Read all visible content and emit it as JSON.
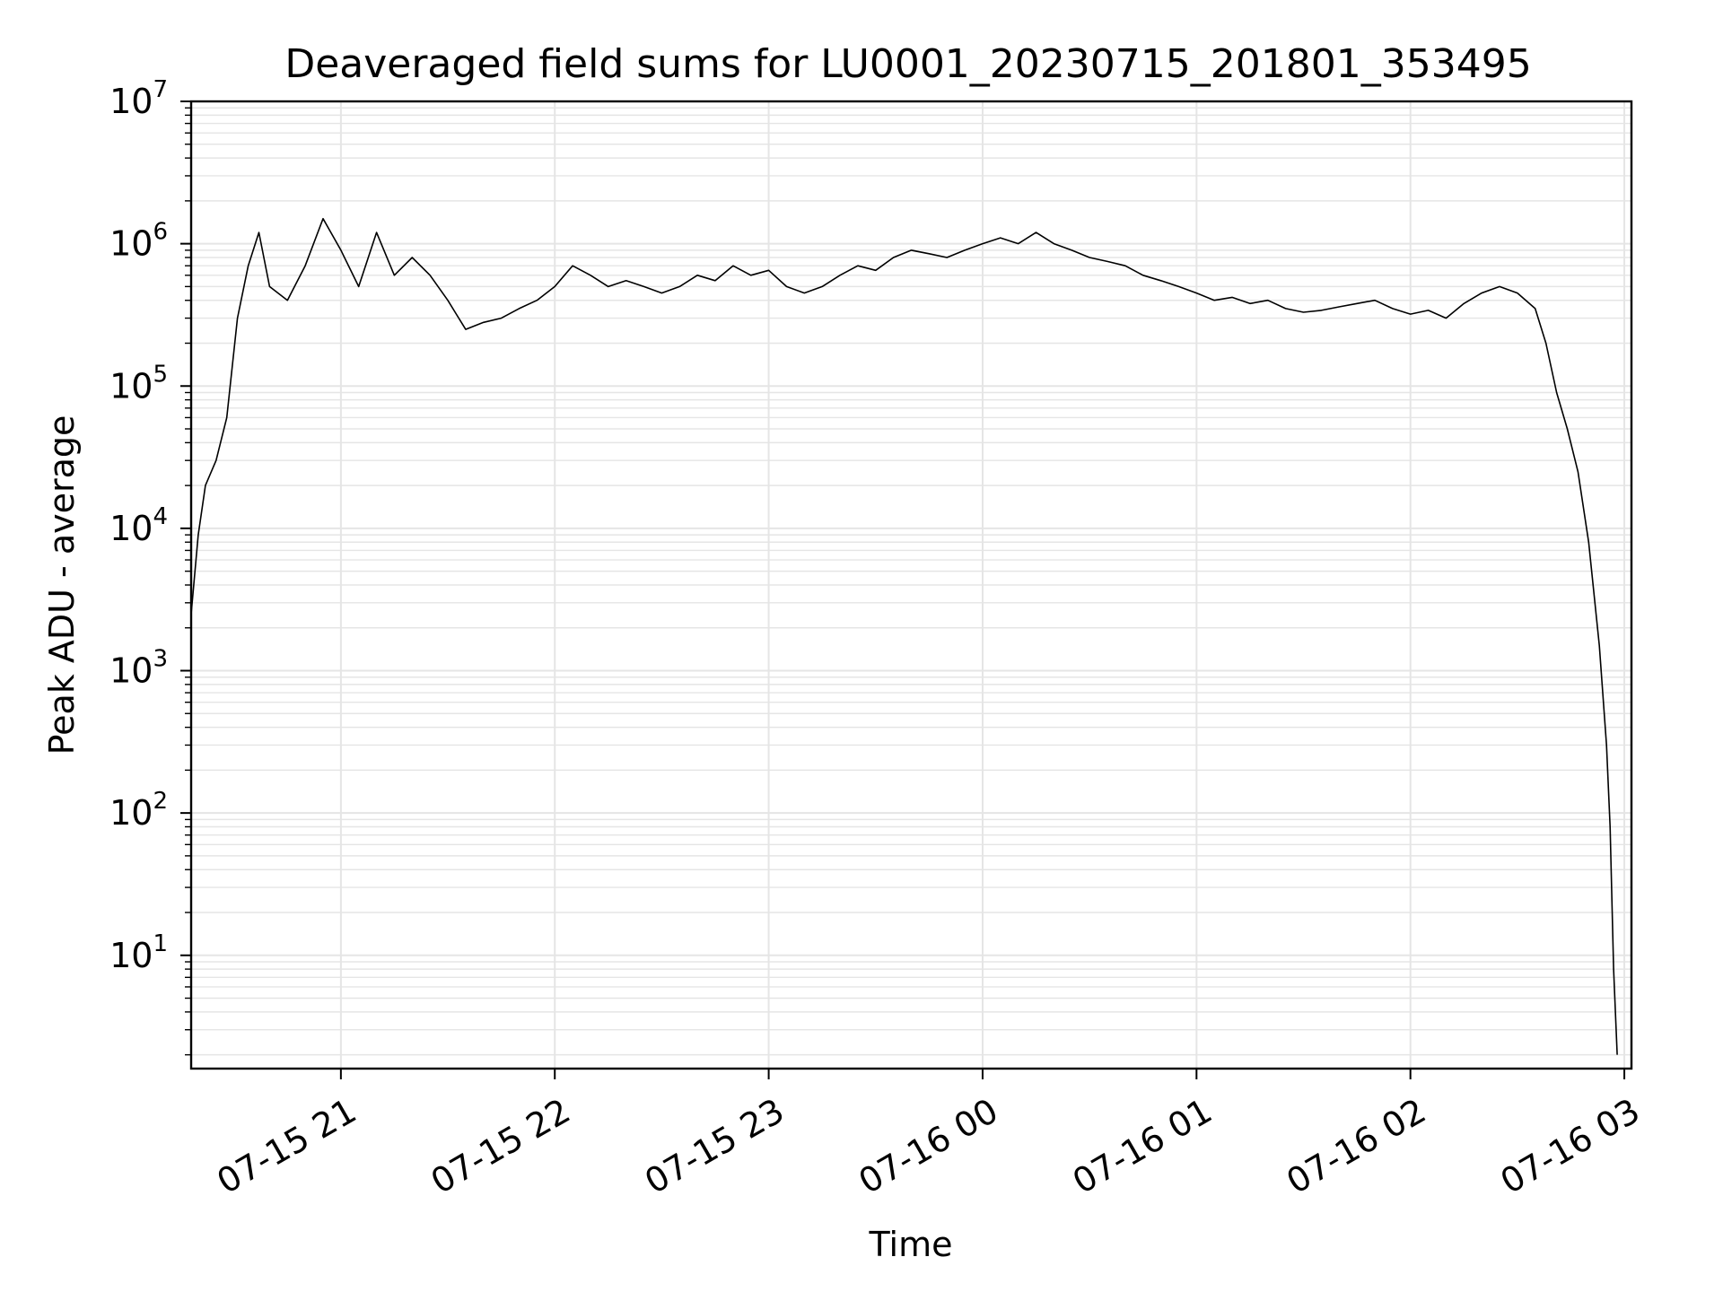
{
  "chart_data": {
    "type": "line",
    "title": "Deaveraged field sums for LU0001_20230715_201801_353495",
    "xlabel": "Time",
    "ylabel": "Peak ADU - average",
    "y_scale": "log",
    "ylim": [
      1.6,
      10000000
    ],
    "xlim": [
      "2023-07-15 20:18",
      "2023-07-16 03:02"
    ],
    "grid": true,
    "grid_color": "#e5e5e5",
    "line_color": "#000000",
    "x_ticks": [
      {
        "value": "2023-07-15 21:00",
        "label": "07-15 21"
      },
      {
        "value": "2023-07-15 22:00",
        "label": "07-15 22"
      },
      {
        "value": "2023-07-15 23:00",
        "label": "07-15 23"
      },
      {
        "value": "2023-07-16 00:00",
        "label": "07-16 00"
      },
      {
        "value": "2023-07-16 01:00",
        "label": "07-16 01"
      },
      {
        "value": "2023-07-16 02:00",
        "label": "07-16 02"
      },
      {
        "value": "2023-07-16 03:00",
        "label": "07-16 03"
      }
    ],
    "y_ticks": [
      {
        "value": 10,
        "base": "10",
        "exp": "1"
      },
      {
        "value": 100,
        "base": "10",
        "exp": "2"
      },
      {
        "value": 1000,
        "base": "10",
        "exp": "3"
      },
      {
        "value": 10000,
        "base": "10",
        "exp": "4"
      },
      {
        "value": 100000,
        "base": "10",
        "exp": "5"
      },
      {
        "value": 1000000,
        "base": "10",
        "exp": "6"
      },
      {
        "value": 10000000,
        "base": "10",
        "exp": "7"
      }
    ],
    "series": [
      {
        "color": "#000000",
        "points": [
          [
            "2023-07-15 20:18",
            2500
          ],
          [
            "2023-07-15 20:20",
            9000
          ],
          [
            "2023-07-15 20:22",
            20000
          ],
          [
            "2023-07-15 20:25",
            30000
          ],
          [
            "2023-07-15 20:28",
            60000
          ],
          [
            "2023-07-15 20:31",
            300000
          ],
          [
            "2023-07-15 20:34",
            700000
          ],
          [
            "2023-07-15 20:37",
            1200000
          ],
          [
            "2023-07-15 20:40",
            500000
          ],
          [
            "2023-07-15 20:45",
            400000
          ],
          [
            "2023-07-15 20:50",
            700000
          ],
          [
            "2023-07-15 20:55",
            1500000
          ],
          [
            "2023-07-15 21:00",
            900000
          ],
          [
            "2023-07-15 21:05",
            500000
          ],
          [
            "2023-07-15 21:10",
            1200000
          ],
          [
            "2023-07-15 21:15",
            600000
          ],
          [
            "2023-07-15 21:20",
            800000
          ],
          [
            "2023-07-15 21:25",
            600000
          ],
          [
            "2023-07-15 21:30",
            400000
          ],
          [
            "2023-07-15 21:35",
            250000
          ],
          [
            "2023-07-15 21:40",
            280000
          ],
          [
            "2023-07-15 21:45",
            300000
          ],
          [
            "2023-07-15 21:50",
            350000
          ],
          [
            "2023-07-15 21:55",
            400000
          ],
          [
            "2023-07-15 22:00",
            500000
          ],
          [
            "2023-07-15 22:05",
            700000
          ],
          [
            "2023-07-15 22:10",
            600000
          ],
          [
            "2023-07-15 22:15",
            500000
          ],
          [
            "2023-07-15 22:20",
            550000
          ],
          [
            "2023-07-15 22:25",
            500000
          ],
          [
            "2023-07-15 22:30",
            450000
          ],
          [
            "2023-07-15 22:35",
            500000
          ],
          [
            "2023-07-15 22:40",
            600000
          ],
          [
            "2023-07-15 22:45",
            550000
          ],
          [
            "2023-07-15 22:50",
            700000
          ],
          [
            "2023-07-15 22:55",
            600000
          ],
          [
            "2023-07-15 23:00",
            650000
          ],
          [
            "2023-07-15 23:05",
            500000
          ],
          [
            "2023-07-15 23:10",
            450000
          ],
          [
            "2023-07-15 23:15",
            500000
          ],
          [
            "2023-07-15 23:20",
            600000
          ],
          [
            "2023-07-15 23:25",
            700000
          ],
          [
            "2023-07-15 23:30",
            650000
          ],
          [
            "2023-07-15 23:35",
            800000
          ],
          [
            "2023-07-15 23:40",
            900000
          ],
          [
            "2023-07-15 23:45",
            850000
          ],
          [
            "2023-07-15 23:50",
            800000
          ],
          [
            "2023-07-15 23:55",
            900000
          ],
          [
            "2023-07-16 00:00",
            1000000
          ],
          [
            "2023-07-16 00:05",
            1100000
          ],
          [
            "2023-07-16 00:10",
            1000000
          ],
          [
            "2023-07-16 00:15",
            1200000
          ],
          [
            "2023-07-16 00:20",
            1000000
          ],
          [
            "2023-07-16 00:25",
            900000
          ],
          [
            "2023-07-16 00:30",
            800000
          ],
          [
            "2023-07-16 00:35",
            750000
          ],
          [
            "2023-07-16 00:40",
            700000
          ],
          [
            "2023-07-16 00:45",
            600000
          ],
          [
            "2023-07-16 00:50",
            550000
          ],
          [
            "2023-07-16 00:55",
            500000
          ],
          [
            "2023-07-16 01:00",
            450000
          ],
          [
            "2023-07-16 01:05",
            400000
          ],
          [
            "2023-07-16 01:10",
            420000
          ],
          [
            "2023-07-16 01:15",
            380000
          ],
          [
            "2023-07-16 01:20",
            400000
          ],
          [
            "2023-07-16 01:25",
            350000
          ],
          [
            "2023-07-16 01:30",
            330000
          ],
          [
            "2023-07-16 01:35",
            340000
          ],
          [
            "2023-07-16 01:40",
            360000
          ],
          [
            "2023-07-16 01:45",
            380000
          ],
          [
            "2023-07-16 01:50",
            400000
          ],
          [
            "2023-07-16 01:55",
            350000
          ],
          [
            "2023-07-16 02:00",
            320000
          ],
          [
            "2023-07-16 02:05",
            340000
          ],
          [
            "2023-07-16 02:10",
            300000
          ],
          [
            "2023-07-16 02:15",
            380000
          ],
          [
            "2023-07-16 02:20",
            450000
          ],
          [
            "2023-07-16 02:25",
            500000
          ],
          [
            "2023-07-16 02:30",
            450000
          ],
          [
            "2023-07-16 02:35",
            350000
          ],
          [
            "2023-07-16 02:38",
            200000
          ],
          [
            "2023-07-16 02:41",
            90000
          ],
          [
            "2023-07-16 02:44",
            50000
          ],
          [
            "2023-07-16 02:47",
            25000
          ],
          [
            "2023-07-16 02:50",
            8000
          ],
          [
            "2023-07-16 02:53",
            1500
          ],
          [
            "2023-07-16 02:55",
            300
          ],
          [
            "2023-07-16 02:56",
            80
          ],
          [
            "2023-07-16 02:57",
            8
          ],
          [
            "2023-07-16 02:58",
            2
          ]
        ]
      }
    ]
  }
}
